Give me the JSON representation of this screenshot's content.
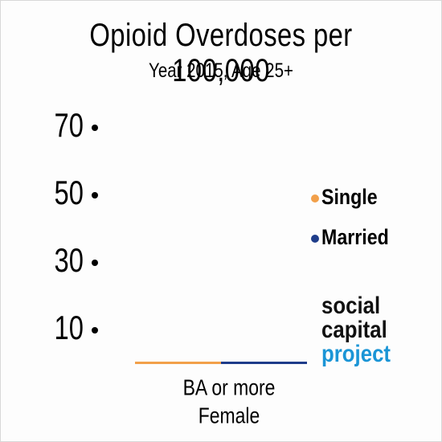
{
  "title": "Opioid Overdoses per 100,000",
  "subtitle": "Year 2015, Age 25+",
  "brand": {
    "line1": "social",
    "line2": "capital",
    "line3": "project"
  },
  "colors": {
    "single": "#f2a04a",
    "married": "#1f3d8a",
    "brand_blue": "#1b95d6"
  },
  "chart_data": {
    "type": "bar",
    "categories": [
      [
        "BA or more",
        "Female"
      ]
    ],
    "series": [
      {
        "name": "Single",
        "values": [
          0
        ]
      },
      {
        "name": "Married",
        "values": [
          0
        ]
      }
    ],
    "yticks": [
      10,
      30,
      50,
      70
    ],
    "ylim": [
      0,
      70
    ],
    "legend": "right",
    "grid": false
  }
}
